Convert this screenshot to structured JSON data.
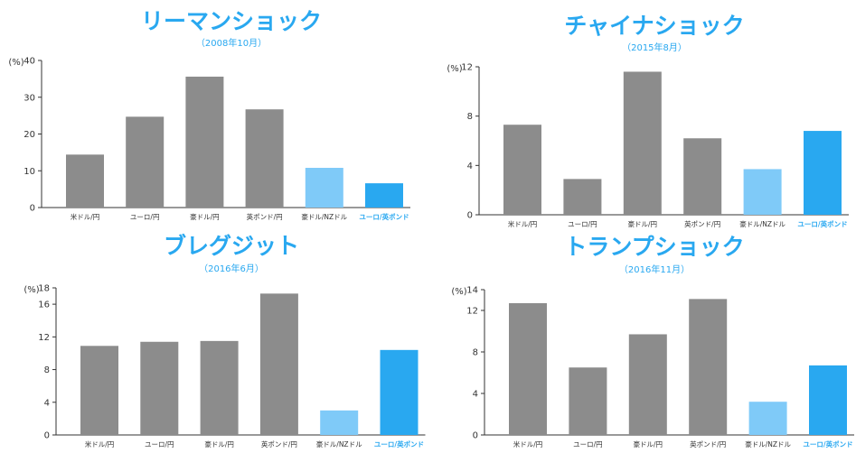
{
  "chart_data": [
    {
      "type": "bar",
      "title": "リーマンショック",
      "subtitle": "（2008年10月）",
      "ylabel": "(%)",
      "ylim": [
        0,
        40
      ],
      "yticks": [
        0,
        10,
        20,
        30,
        40
      ],
      "categories": [
        "米ドル/円",
        "ユーロ/円",
        "豪ドル/円",
        "英ポンド/円",
        "豪ドル/NZドル",
        "ユーロ/英ポンド"
      ],
      "values": [
        14.4,
        24.7,
        35.6,
        26.7,
        10.8,
        6.6
      ],
      "bar_colors": [
        "#8c8c8c",
        "#8c8c8c",
        "#8c8c8c",
        "#8c8c8c",
        "#7fcaf8",
        "#29a8f0"
      ],
      "highlight_label_index": 5,
      "grid": false
    },
    {
      "type": "bar",
      "title": "チャイナショック",
      "subtitle": "（2015年8月）",
      "ylabel": "(%)",
      "ylim": [
        0,
        12
      ],
      "yticks": [
        0,
        4,
        8,
        12
      ],
      "categories": [
        "米ドル/円",
        "ユーロ/円",
        "豪ドル/円",
        "英ポンド/円",
        "豪ドル/NZドル",
        "ユーロ/英ポンド"
      ],
      "values": [
        7.3,
        2.9,
        11.6,
        6.2,
        3.7,
        6.8
      ],
      "bar_colors": [
        "#8c8c8c",
        "#8c8c8c",
        "#8c8c8c",
        "#8c8c8c",
        "#7fcaf8",
        "#29a8f0"
      ],
      "highlight_label_index": 5,
      "grid": false
    },
    {
      "type": "bar",
      "title": "ブレグジット",
      "subtitle": "（2016年6月）",
      "ylabel": "(%)",
      "ylim": [
        0,
        18
      ],
      "yticks": [
        0,
        4,
        8,
        12,
        16,
        18
      ],
      "categories": [
        "米ドル/円",
        "ユーロ/円",
        "豪ドル/円",
        "英ポンド/円",
        "豪ドル/NZドル",
        "ユーロ/英ポンド"
      ],
      "values": [
        10.9,
        11.4,
        11.5,
        17.3,
        3.0,
        10.4
      ],
      "bar_colors": [
        "#8c8c8c",
        "#8c8c8c",
        "#8c8c8c",
        "#8c8c8c",
        "#7fcaf8",
        "#29a8f0"
      ],
      "highlight_label_index": 5,
      "grid": false
    },
    {
      "type": "bar",
      "title": "トランプショック",
      "subtitle": "（2016年11月）",
      "ylabel": "(%)",
      "ylim": [
        0,
        14
      ],
      "yticks": [
        0,
        4,
        8,
        12,
        14
      ],
      "categories": [
        "米ドル/円",
        "ユーロ/円",
        "豪ドル/円",
        "英ポンド/円",
        "豪ドル/NZドル",
        "ユーロ/英ポンド"
      ],
      "values": [
        12.7,
        6.5,
        9.7,
        13.1,
        3.2,
        6.7
      ],
      "bar_colors": [
        "#8c8c8c",
        "#8c8c8c",
        "#8c8c8c",
        "#8c8c8c",
        "#7fcaf8",
        "#29a8f0"
      ],
      "highlight_label_index": 5,
      "grid": false
    }
  ]
}
